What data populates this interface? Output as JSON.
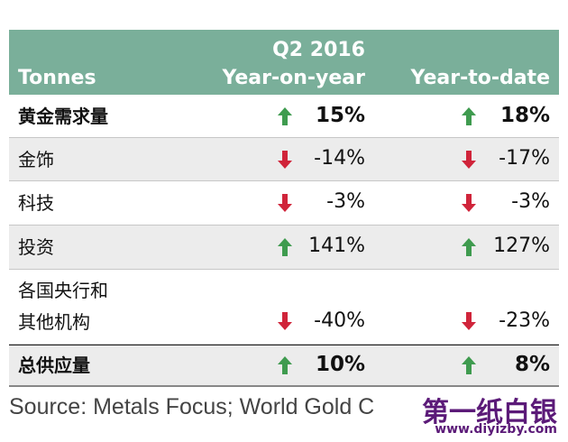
{
  "header": {
    "col0": "Tonnes",
    "period": "Q2 2016",
    "col1": "Year-on-year",
    "col2": "Year-to-date"
  },
  "rows": [
    {
      "label": "黄金需求量",
      "yoy": "15%",
      "yoy_dir": "up",
      "ytd": "18%",
      "ytd_dir": "up",
      "bold": true
    },
    {
      "label": "金饰",
      "yoy": "-14%",
      "yoy_dir": "down",
      "ytd": "-17%",
      "ytd_dir": "down"
    },
    {
      "label": "科技",
      "yoy": "-3%",
      "yoy_dir": "down",
      "ytd": "-3%",
      "ytd_dir": "down"
    },
    {
      "label": "投资",
      "yoy": "141%",
      "yoy_dir": "up",
      "ytd": "127%",
      "ytd_dir": "up"
    },
    {
      "label_line1": "各国央行和",
      "label_line2": "其他机构",
      "yoy": "-40%",
      "yoy_dir": "down",
      "ytd": "-23%",
      "ytd_dir": "down"
    },
    {
      "label": "总供应量",
      "yoy": "10%",
      "yoy_dir": "up",
      "ytd": "8%",
      "ytd_dir": "up",
      "bold": true
    }
  ],
  "source": "Source: Metals Focus; World Gold C",
  "watermark": {
    "title": "第一纸白银",
    "url": "www.diyizby.com"
  },
  "colors": {
    "header_bg": "#7aaf9a",
    "up_arrow": "#3f9b4f",
    "down_arrow": "#d0243a",
    "shaded_row": "#ececec"
  }
}
